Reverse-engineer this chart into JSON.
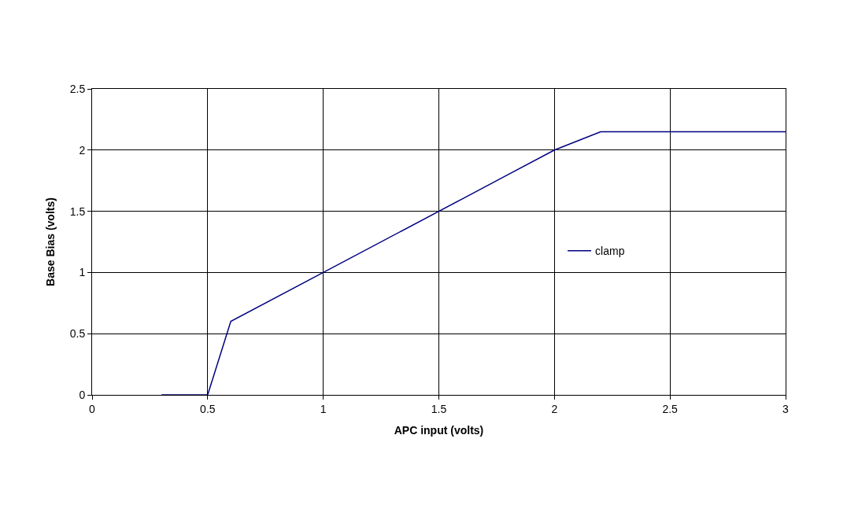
{
  "chart_data": {
    "type": "line",
    "xlabel": "APC input (volts)",
    "ylabel": "Base Bias (volts)",
    "x": [
      0.3,
      0.5,
      0.6,
      1.0,
      1.6,
      1.8,
      2.0,
      2.2,
      3.0
    ],
    "series": [
      {
        "name": "clamp",
        "color": "#000080",
        "values": [
          0,
          0,
          0.6,
          1.0,
          1.6,
          1.8,
          2.0,
          2.15,
          2.15
        ]
      }
    ],
    "xlim": [
      0,
      3
    ],
    "xticks": [
      0,
      0.5,
      1,
      1.5,
      2,
      2.5,
      3
    ],
    "ylim": [
      0,
      2.5
    ],
    "yticks": [
      0,
      0.5,
      1,
      1.5,
      2,
      2.5
    ],
    "grid": true,
    "legend": "right",
    "marker": "none",
    "line_style": "solid"
  }
}
